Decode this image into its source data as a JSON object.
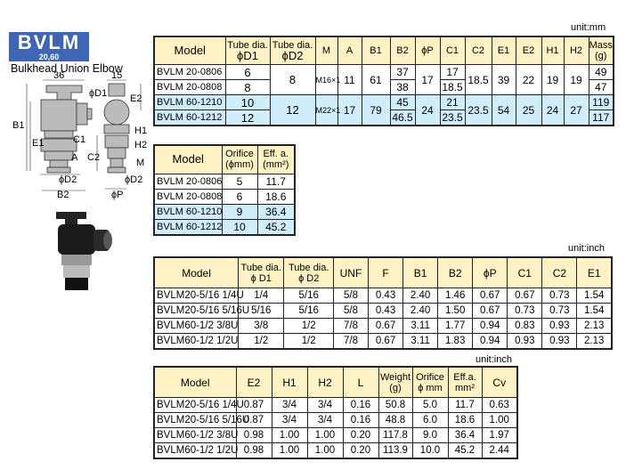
{
  "logo": {
    "name": "BVLM",
    "sizes": "20,60"
  },
  "subtitle": "Bulkhead Union Elbow",
  "diagram": {
    "labels": [
      "36",
      "15",
      "B1",
      "E1",
      "ϕD1",
      "E2",
      "C1",
      "H1",
      "H2",
      "C2",
      "A",
      "M",
      "ϕD2",
      "ϕD2",
      "B2",
      "ϕP"
    ]
  },
  "colors": {
    "header": "#fff3c6",
    "highlight": "#cfedfb"
  },
  "table_mm": {
    "unit": "unit:mm",
    "headers": [
      "Model",
      "Tube dia.\nϕD1",
      "Tube dia.\nϕD2",
      "M",
      "A",
      "B1",
      "B2",
      "ϕP",
      "C1",
      "C2",
      "E1",
      "E2",
      "H1",
      "H2",
      "Mass\n(g)"
    ],
    "h": {
      "model": "Model",
      "d1a": "Tube dia.",
      "d1b": "ϕD1",
      "d2a": "Tube dia.",
      "d2b": "ϕD2",
      "m": "M",
      "a": "A",
      "b1": "B1",
      "b2": "B2",
      "p": "ϕP",
      "c1": "C1",
      "c2": "C2",
      "e1": "E1",
      "e2": "E2",
      "h1": "H1",
      "h2": "H2",
      "massa": "Mass",
      "massb": "(g)"
    },
    "g20": {
      "d2": "8",
      "m": "M16×1",
      "a": "11",
      "b1": "61",
      "p": "17",
      "c2": "18.5",
      "e1": "39",
      "e2": "22",
      "h1": "19",
      "h2": "19"
    },
    "g60": {
      "d2": "12",
      "m": "M22×1",
      "a": "17",
      "b1": "79",
      "p": "24",
      "c2": "23.5",
      "e1": "54",
      "e2": "25",
      "h1": "24",
      "h2": "27"
    },
    "rows": [
      {
        "model": "BVLM 20-0806",
        "d1": "6",
        "b2": "37",
        "c1": "17",
        "mass": "49"
      },
      {
        "model": "BVLM 20-0808",
        "d1": "8",
        "b2": "38",
        "c1": "18.5",
        "mass": "47"
      },
      {
        "model": "BVLM 60-1210",
        "d1": "10",
        "b2": "45",
        "c1": "21",
        "mass": "119"
      },
      {
        "model": "BVLM 60-1212",
        "d1": "12",
        "b2": "46.5",
        "c1": "23.5",
        "mass": "117"
      }
    ]
  },
  "table_orifice": {
    "h": {
      "model": "Model",
      "oa": "Orifice",
      "ob": "(ϕmm)",
      "ea": "Eff. a.",
      "eb": "(mm²)"
    },
    "rows": [
      [
        "BVLM 20-0806",
        "5",
        "11.7"
      ],
      [
        "BVLM 20-0808",
        "6",
        "18.6"
      ],
      [
        "BVLM 60-1210",
        "9",
        "36.4"
      ],
      [
        "BVLM 60-1212",
        "10",
        "45.2"
      ]
    ]
  },
  "table_inch1": {
    "unit": "unit:inch",
    "headers": [
      [
        "Model"
      ],
      [
        "Tube dia.",
        "ϕ D1"
      ],
      [
        "Tube dia.",
        "ϕ D2"
      ],
      [
        "UNF"
      ],
      [
        "F"
      ],
      [
        "B1"
      ],
      [
        "B2"
      ],
      [
        "ϕP"
      ],
      [
        "C1"
      ],
      [
        "C2"
      ],
      [
        "E1"
      ]
    ],
    "rows": [
      [
        "BVLM20-5/16 1/4U",
        "1/4",
        "5/16",
        "5/8",
        "0.43",
        "2.40",
        "1.46",
        "0.67",
        "0.67",
        "0.73",
        "1.54"
      ],
      [
        "BVLM20-5/16 5/16U",
        "5/16",
        "5/16",
        "5/8",
        "0.43",
        "2.40",
        "1.50",
        "0.67",
        "0.73",
        "0.73",
        "1.54"
      ],
      [
        "BVLM60-1/2 3/8U",
        "3/8",
        "1/2",
        "7/8",
        "0.67",
        "3.11",
        "1.77",
        "0.94",
        "0.83",
        "0.93",
        "2.13"
      ],
      [
        "BVLM60-1/2 1/2U",
        "1/2",
        "1/2",
        "7/8",
        "0.67",
        "3.11",
        "1.83",
        "0.94",
        "0.93",
        "0.93",
        "2.13"
      ]
    ]
  },
  "table_inch2": {
    "unit": "unit:inch",
    "headers": [
      [
        "Model"
      ],
      [
        "E2"
      ],
      [
        "H1"
      ],
      [
        "H2"
      ],
      [
        "L"
      ],
      [
        "Weight",
        "(g)"
      ],
      [
        "Orifice",
        "ϕ mm"
      ],
      [
        "Eff.a.",
        "mm²"
      ],
      [
        "Cv"
      ]
    ],
    "rows": [
      [
        "BVLM20-5/16 1/4U",
        "0.87",
        "3/4",
        "3/4",
        "0.16",
        "50.8",
        "5.0",
        "11.7",
        "0.63"
      ],
      [
        "BVLM20-5/16 5/16U",
        "0.87",
        "3/4",
        "3/4",
        "0.16",
        "48.8",
        "6.0",
        "18.6",
        "1.00"
      ],
      [
        "BVLM60-1/2 3/8U",
        "0.98",
        "1.00",
        "1.00",
        "0.20",
        "117.8",
        "9.0",
        "36.4",
        "1.97"
      ],
      [
        "BVLM60-1/2 1/2U",
        "0.98",
        "1.00",
        "1.00",
        "0.20",
        "113.9",
        "10.0",
        "45.2",
        "2.44"
      ]
    ]
  }
}
